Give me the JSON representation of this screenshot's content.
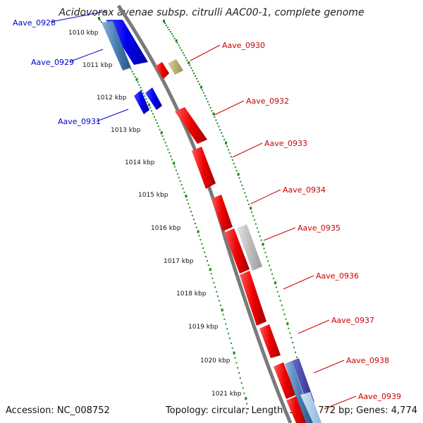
{
  "title": "Acidovorax avenae subsp. citrulli AAC00-1, complete genome",
  "accession": "Accession: NC_008752",
  "summary": "Topology: circular; Length: 5,352,772 bp; Genes: 4,774",
  "ticks": [
    "1010 kbp",
    "1011 kbp",
    "1012 kbp",
    "1013 kbp",
    "1014 kbp",
    "1015 kbp",
    "1016 kbp",
    "1017 kbp",
    "1018 kbp",
    "1019 kbp",
    "1020 kbp",
    "1021 kbp"
  ],
  "genes_left": [
    {
      "label": "Aave_0928",
      "color": "#0000cc"
    },
    {
      "label": "Aave_0929",
      "color": "#0000cc"
    },
    {
      "label": "Aave_0931",
      "color": "#0000cc"
    }
  ],
  "genes_right": [
    {
      "label": "Aave_0930",
      "color": "#cc0000"
    },
    {
      "label": "Aave_0932",
      "color": "#cc0000"
    },
    {
      "label": "Aave_0933",
      "color": "#cc0000"
    },
    {
      "label": "Aave_0934",
      "color": "#cc0000"
    },
    {
      "label": "Aave_0935",
      "color": "#cc0000"
    },
    {
      "label": "Aave_0936",
      "color": "#cc0000"
    },
    {
      "label": "Aave_0937",
      "color": "#cc0000"
    },
    {
      "label": "Aave_0938",
      "color": "#cc0000"
    },
    {
      "label": "Aave_0939",
      "color": "#cc0000"
    }
  ],
  "colors": {
    "backbone": "#7a7a7a",
    "tick": "#1a8a1a",
    "forward": "#ee0000",
    "reverse": "#0000ee",
    "blue_steel": "#4a7fb5",
    "olive": "#b5aa6a",
    "grey": "#bdbdbd"
  }
}
